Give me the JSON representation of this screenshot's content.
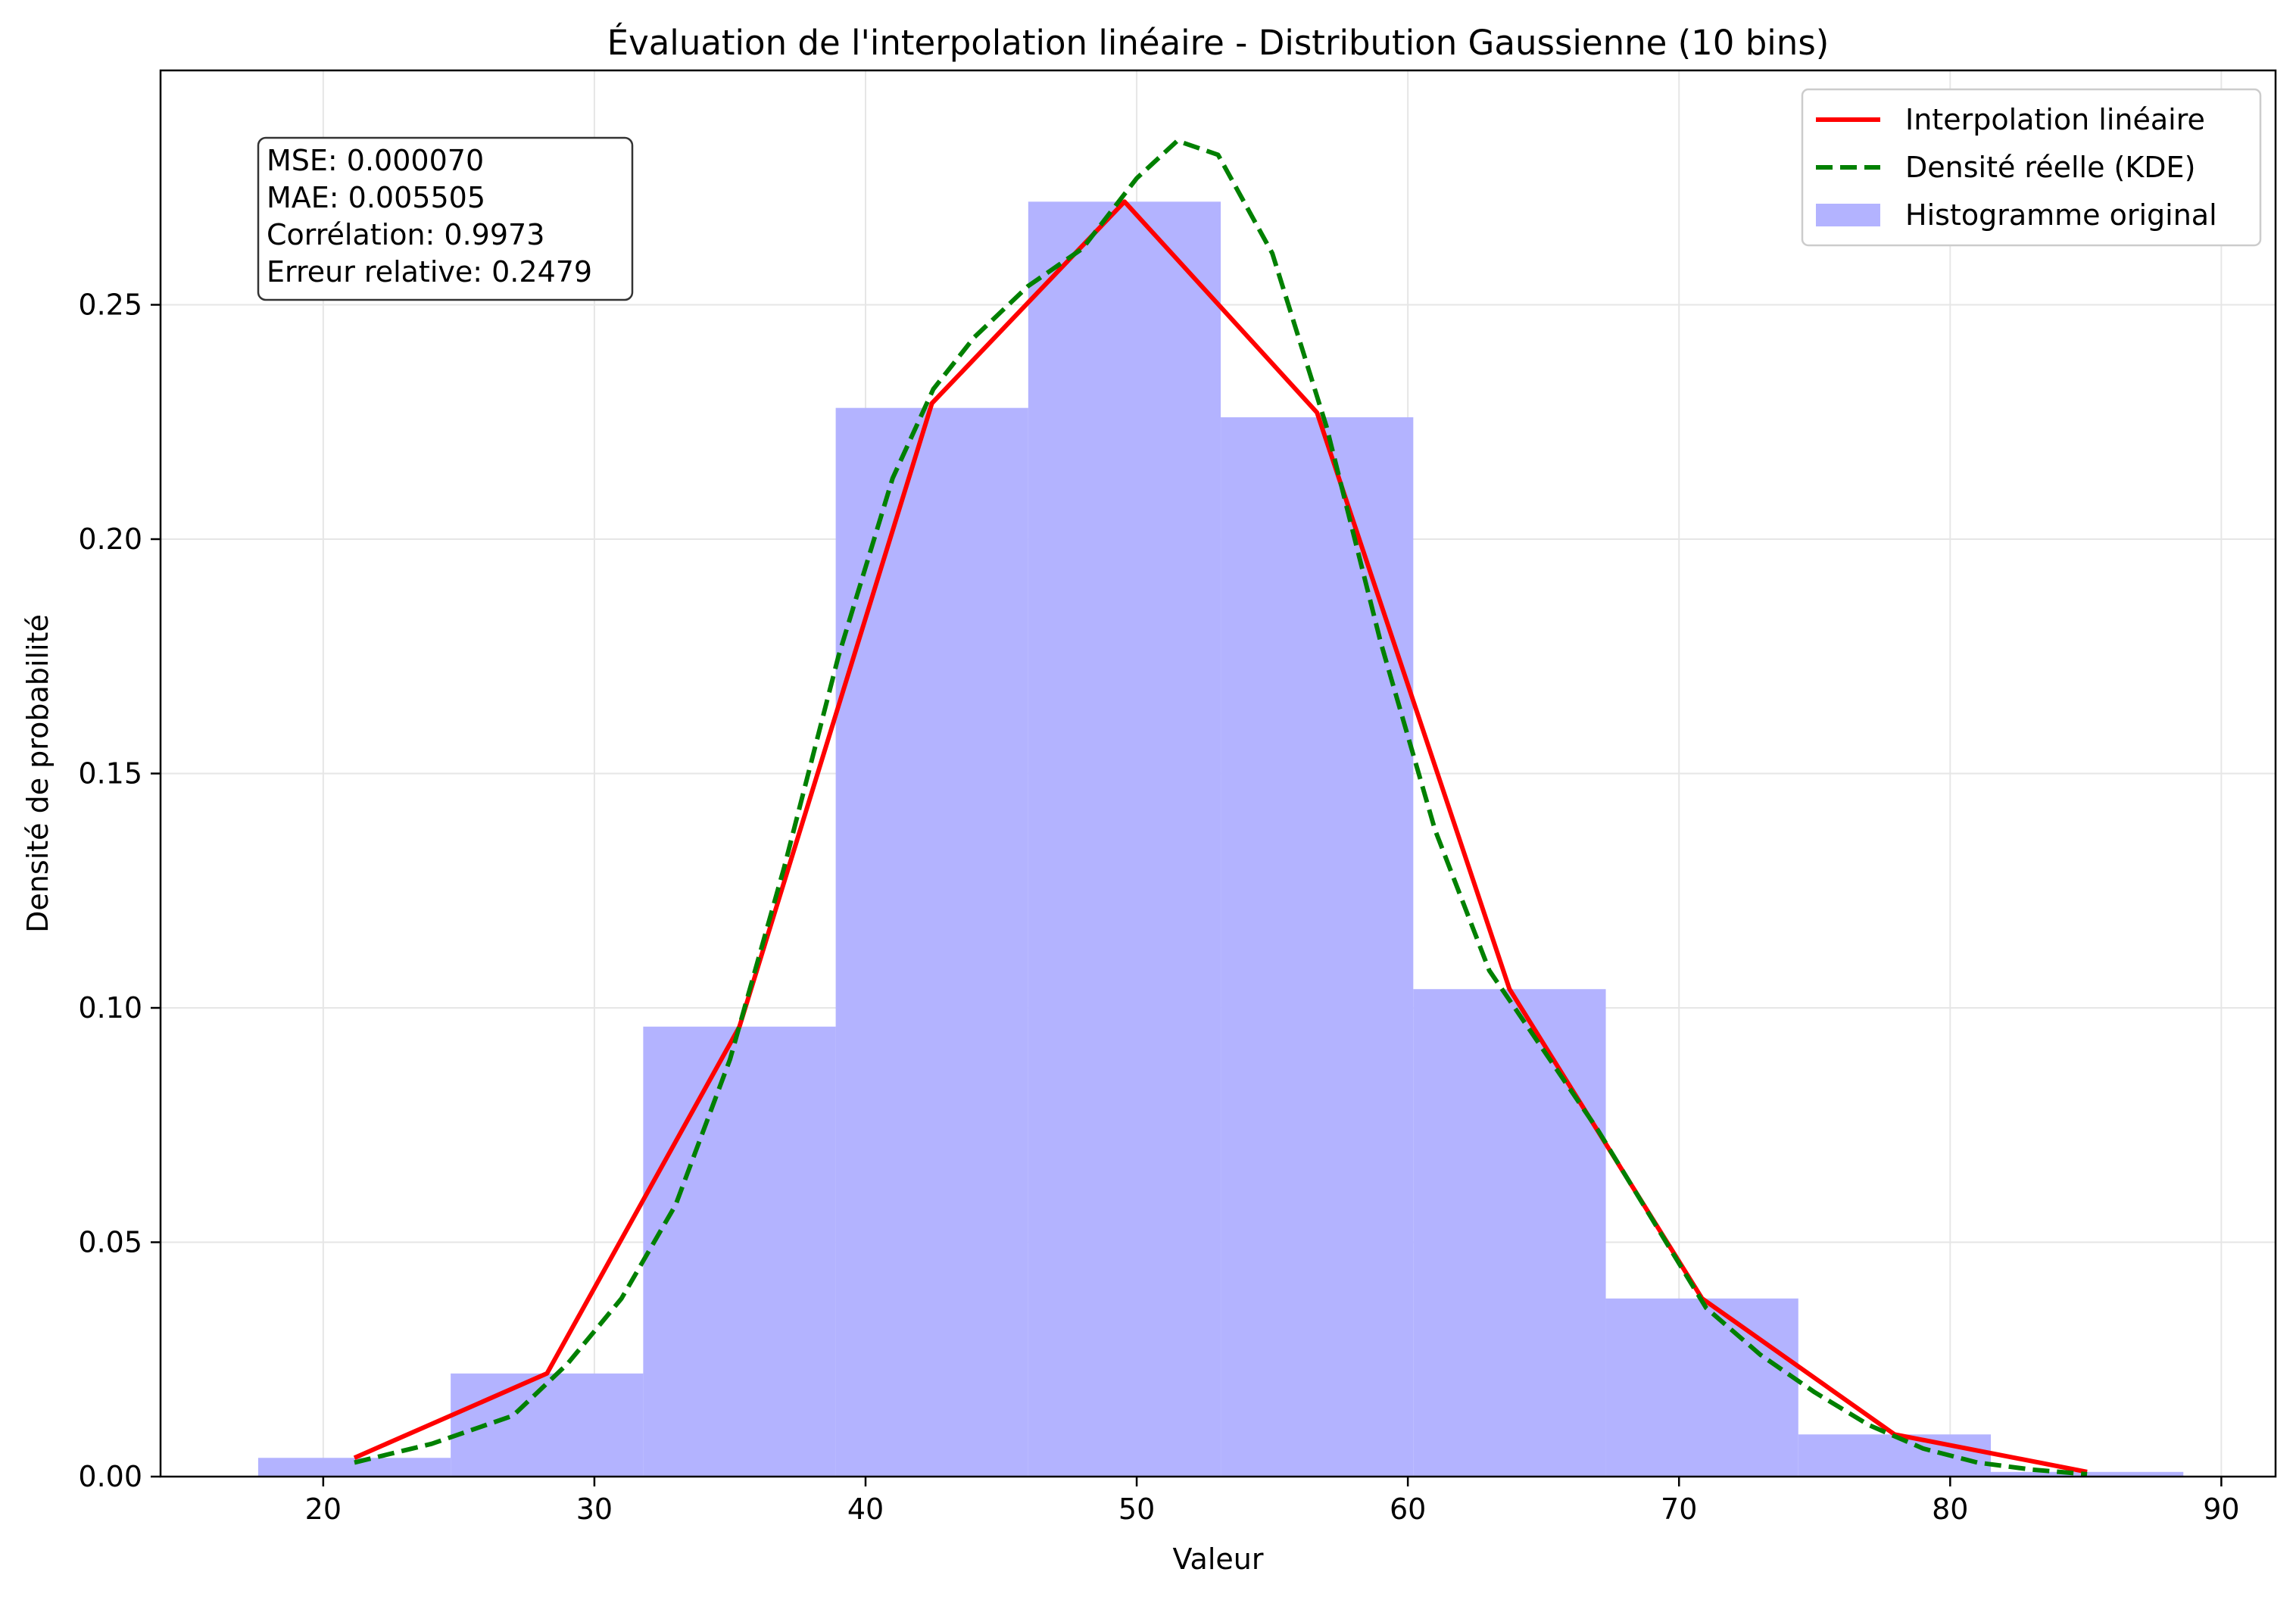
{
  "chart_data": {
    "type": "bar",
    "title": "Évaluation de l'interpolation linéaire - Distribution Gaussienne (10 bins)",
    "xlabel": "Valeur",
    "ylabel": "Densité de probabilité",
    "xlim": [
      14,
      92
    ],
    "ylim": [
      0,
      0.3
    ],
    "xticks": [
      20,
      30,
      40,
      50,
      60,
      70,
      80,
      90
    ],
    "yticks": [
      0.0,
      0.05,
      0.1,
      0.15,
      0.2,
      0.25
    ],
    "xtick_labels": [
      "20",
      "30",
      "40",
      "50",
      "60",
      "70",
      "80",
      "90"
    ],
    "ytick_labels": [
      "0.00",
      "0.05",
      "0.10",
      "0.15",
      "0.20",
      "0.25"
    ],
    "grid": true,
    "legend_position": "top-right",
    "histogram": {
      "name": "Histogramme original",
      "color": "#b3b3ff",
      "bins": [
        {
          "x0": 17.6,
          "x1": 24.7,
          "value": 0.004
        },
        {
          "x0": 24.7,
          "x1": 31.8,
          "value": 0.022
        },
        {
          "x0": 31.8,
          "x1": 38.9,
          "value": 0.096
        },
        {
          "x0": 38.9,
          "x1": 46.0,
          "value": 0.228
        },
        {
          "x0": 46.0,
          "x1": 53.1,
          "value": 0.272
        },
        {
          "x0": 53.1,
          "x1": 60.2,
          "value": 0.226
        },
        {
          "x0": 60.2,
          "x1": 67.3,
          "value": 0.104
        },
        {
          "x0": 67.3,
          "x1": 74.4,
          "value": 0.038
        },
        {
          "x0": 74.4,
          "x1": 81.5,
          "value": 0.009
        },
        {
          "x0": 81.5,
          "x1": 88.6,
          "value": 0.001
        }
      ]
    },
    "series": [
      {
        "name": "Interpolation linéaire",
        "color": "#ff0000",
        "style": "solid",
        "x": [
          21.15,
          28.25,
          35.35,
          42.45,
          49.55,
          56.65,
          63.75,
          70.85,
          77.95,
          85.05
        ],
        "y": [
          0.004,
          0.022,
          0.096,
          0.229,
          0.272,
          0.227,
          0.104,
          0.038,
          0.009,
          0.001
        ]
      },
      {
        "name": "Densité réelle (KDE)",
        "color": "#008000",
        "style": "dashed",
        "x": [
          21.15,
          24,
          27,
          29,
          31,
          33,
          35,
          37,
          39,
          41,
          42.5,
          44,
          46,
          48,
          50,
          51.5,
          53,
          55,
          57,
          59,
          61,
          63,
          65,
          67,
          69,
          71,
          73,
          75,
          77,
          79,
          81,
          83,
          85.05
        ],
        "y": [
          0.003,
          0.007,
          0.013,
          0.024,
          0.038,
          0.058,
          0.089,
          0.13,
          0.175,
          0.213,
          0.232,
          0.243,
          0.254,
          0.262,
          0.277,
          0.285,
          0.282,
          0.261,
          0.224,
          0.178,
          0.138,
          0.108,
          0.091,
          0.074,
          0.055,
          0.036,
          0.026,
          0.018,
          0.011,
          0.006,
          0.003,
          0.0015,
          0.0005
        ]
      }
    ],
    "stats": [
      "MSE: 0.000070",
      "MAE: 0.005505",
      "Corrélation: 0.9973",
      "Erreur relative: 0.2479"
    ]
  }
}
